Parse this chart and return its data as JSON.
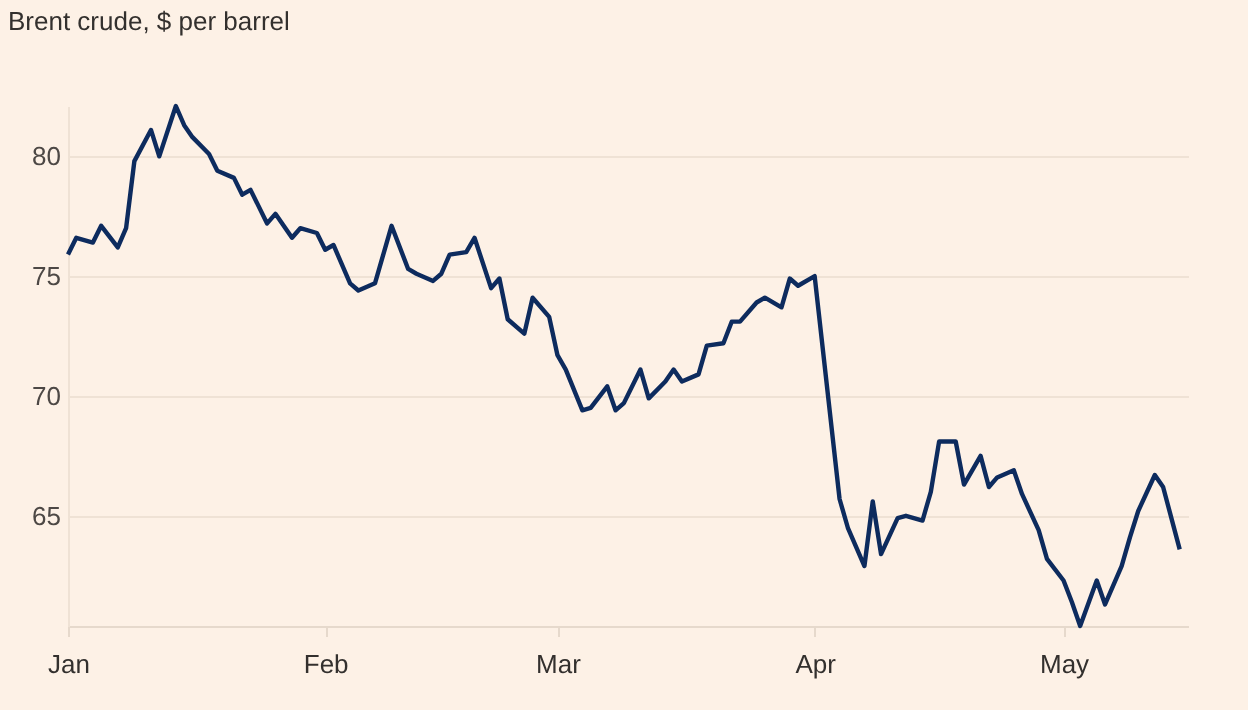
{
  "chart_data": {
    "type": "line",
    "title": "Brent crude, $ per barrel",
    "x": [
      "--01-01",
      "--01-02",
      "--01-04",
      "--01-05",
      "--01-07",
      "--01-08",
      "--01-09",
      "--01-11",
      "--01-12",
      "--01-14",
      "--01-15",
      "--01-16",
      "--01-18",
      "--01-19",
      "--01-21",
      "--01-22",
      "--01-23",
      "--01-25",
      "--01-26",
      "--01-28",
      "--01-29",
      "--01-31",
      "--02-01",
      "--02-02",
      "--02-04",
      "--02-05",
      "--02-07",
      "--02-08",
      "--02-09",
      "--02-11",
      "--02-12",
      "--02-14",
      "--02-15",
      "--02-16",
      "--02-18",
      "--02-19",
      "--02-21",
      "--02-22",
      "--02-23",
      "--02-25",
      "--02-26",
      "--02-28",
      "--03-01",
      "--03-02",
      "--03-04",
      "--03-05",
      "--03-07",
      "--03-08",
      "--03-09",
      "--03-11",
      "--03-12",
      "--03-14",
      "--03-15",
      "--03-16",
      "--03-18",
      "--03-19",
      "--03-21",
      "--03-22",
      "--03-23",
      "--03-25",
      "--03-26",
      "--03-28",
      "--03-29",
      "--03-30",
      "--04-01",
      "--04-04",
      "--04-05",
      "--04-07",
      "--04-08",
      "--04-09",
      "--04-11",
      "--04-12",
      "--04-14",
      "--04-15",
      "--04-16",
      "--04-18",
      "--04-19",
      "--04-21",
      "--04-22",
      "--04-23",
      "--04-25",
      "--04-26",
      "--04-28",
      "--04-29",
      "--05-01",
      "--05-02",
      "--05-03",
      "--05-05",
      "--05-06",
      "--05-08",
      "--05-09",
      "--05-10",
      "--05-12",
      "--05-13",
      "--05-15"
    ],
    "series": [
      {
        "color": "#0d2b5e",
        "values": [
          75.9,
          76.6,
          76.4,
          77.1,
          76.2,
          77.0,
          79.8,
          81.1,
          80.0,
          82.1,
          81.3,
          80.8,
          80.1,
          79.4,
          79.1,
          78.4,
          78.6,
          77.2,
          77.6,
          76.6,
          77.0,
          76.8,
          76.1,
          76.3,
          74.7,
          74.4,
          74.7,
          75.9,
          77.1,
          75.3,
          75.1,
          74.8,
          75.1,
          75.9,
          76.0,
          76.6,
          74.5,
          74.9,
          73.2,
          72.6,
          74.1,
          73.3,
          71.7,
          71.1,
          69.4,
          69.5,
          70.4,
          69.4,
          69.7,
          71.1,
          69.9,
          70.6,
          71.1,
          70.6,
          70.9,
          72.1,
          72.2,
          73.1,
          73.1,
          73.9,
          74.1,
          73.7,
          74.9,
          74.6,
          75.0,
          65.7,
          64.5,
          62.9,
          65.6,
          63.4,
          64.9,
          65.0,
          64.8,
          66.0,
          68.1,
          68.1,
          66.3,
          67.5,
          66.2,
          66.6,
          66.9,
          65.9,
          64.4,
          63.2,
          62.3,
          61.4,
          60.4,
          62.3,
          61.3,
          62.9,
          64.1,
          65.2,
          66.7,
          66.2,
          63.6
        ]
      }
    ],
    "xlim": [
      "--01-01",
      "--05-16"
    ],
    "xticks": [
      {
        "value": "--01-01",
        "label": "Jan"
      },
      {
        "value": "--02-01",
        "label": "Feb"
      },
      {
        "value": "--03-01",
        "label": "Mar"
      },
      {
        "value": "--04-01",
        "label": "Apr"
      },
      {
        "value": "--05-01",
        "label": "May"
      }
    ],
    "ylim": [
      60.4,
      82.1
    ],
    "yticks": [
      65,
      70,
      75,
      80
    ],
    "grid": "y",
    "line_style": "solid",
    "marker": "none"
  }
}
